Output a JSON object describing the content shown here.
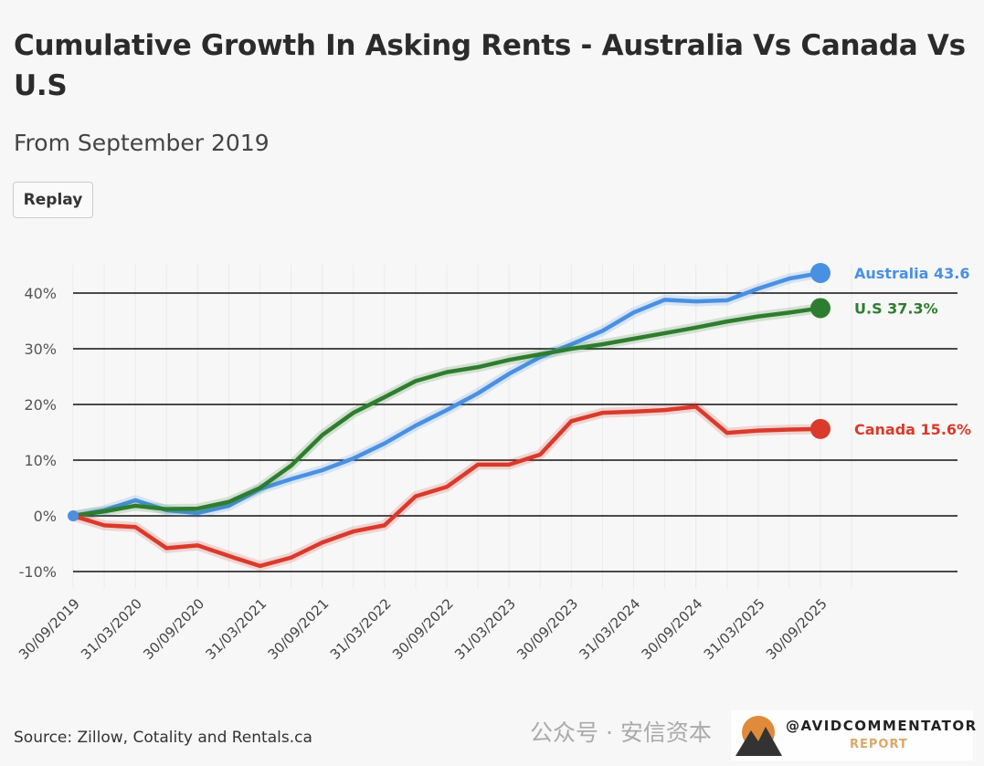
{
  "header": {
    "title": "Cumulative Growth In Asking Rents - Australia Vs Canada Vs U.S",
    "subtitle": "From September 2019",
    "replay_label": "Replay"
  },
  "footer": {
    "source": "Source: Zillow, Cotality and Rentals.ca",
    "watermark": "公众号 · 安信资本",
    "logo_text": "@AVIDCOMMENTATOR",
    "logo_subtext": "REPORT"
  },
  "chart_data": {
    "type": "line",
    "title": "Cumulative Growth In Asking Rents - Australia Vs Canada Vs U.S",
    "subtitle": "From September 2019",
    "xlabel": "",
    "ylabel": "",
    "ylim": [
      -10,
      40
    ],
    "yticks": [
      -10,
      0,
      10,
      20,
      30,
      40
    ],
    "ytick_labels": [
      "-10%",
      "0%",
      "10%",
      "20%",
      "30%",
      "40%"
    ],
    "grid": true,
    "x_tick_labels": [
      "30/09/2019",
      "31/03/2020",
      "30/09/2020",
      "31/03/2021",
      "30/09/2021",
      "31/03/2022",
      "30/09/2022",
      "31/03/2023",
      "30/09/2023",
      "31/03/2024",
      "30/09/2024",
      "31/03/2025",
      "30/09/2025"
    ],
    "x_frequency": "quarterly",
    "series": [
      {
        "name": "Australia",
        "end_label": "Australia 43.6",
        "color": "#4a90e2",
        "values": [
          0,
          1,
          2.8,
          1,
          0.5,
          1.8,
          4.8,
          6.6,
          8.2,
          10.3,
          13,
          16.2,
          19,
          22,
          25.5,
          28.5,
          30.8,
          33.2,
          36.5,
          38.8,
          38.5,
          38.7,
          40.8,
          42.6,
          43.6
        ]
      },
      {
        "name": "U.S",
        "end_label": "U.S 37.3%",
        "color": "#2e7d2e",
        "values": [
          0,
          0.8,
          1.8,
          1.2,
          1.3,
          2.5,
          5,
          9,
          14.5,
          18.5,
          21.3,
          24.2,
          25.8,
          26.7,
          28,
          29,
          30,
          30.8,
          31.8,
          32.8,
          33.8,
          34.9,
          35.8,
          36.5,
          37.3
        ]
      },
      {
        "name": "Canada",
        "end_label": "Canada 15.6%",
        "color": "#d93a2b",
        "values": [
          0,
          -1.7,
          -2,
          -5.8,
          -5.3,
          -7.2,
          -9,
          -7.5,
          -4.8,
          -2.8,
          -1.7,
          3.5,
          5.2,
          9.2,
          9.2,
          11,
          17,
          18.5,
          18.7,
          19,
          19.6,
          14.9,
          15.3,
          15.5,
          15.6
        ]
      }
    ]
  }
}
